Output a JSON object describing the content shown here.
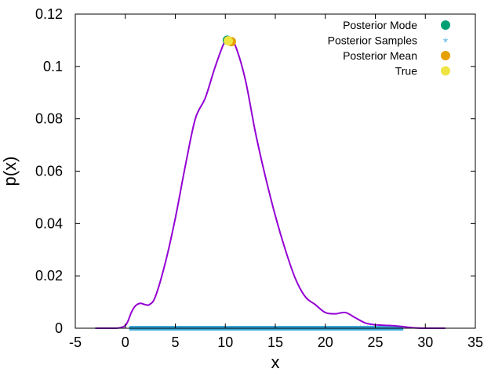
{
  "chart_data": {
    "type": "line",
    "title": "",
    "xlabel": "x",
    "ylabel": "p(x)",
    "xlim": [
      -5,
      35
    ],
    "ylim": [
      0,
      0.12
    ],
    "x_ticks": [
      -5,
      0,
      5,
      10,
      15,
      20,
      25,
      30,
      35
    ],
    "y_ticks": [
      0,
      0.02,
      0.04,
      0.06,
      0.08,
      0.1,
      0.12
    ],
    "x_tick_labels": [
      "-5",
      "0",
      "5",
      "10",
      "15",
      "20",
      "25",
      "30",
      "35"
    ],
    "y_tick_labels": [
      "0",
      "0.02",
      "0.04",
      "0.06",
      "0.08",
      "0.1",
      "0.12"
    ],
    "grid": false,
    "legend_position": "top-right",
    "curve": {
      "color": "#9400d3",
      "points": [
        [
          -3.0,
          0.0
        ],
        [
          -1.0,
          0.0
        ],
        [
          -0.5,
          0.0002
        ],
        [
          0.0,
          0.001
        ],
        [
          0.3,
          0.003
        ],
        [
          0.6,
          0.006
        ],
        [
          1.0,
          0.0085
        ],
        [
          1.5,
          0.0095
        ],
        [
          2.0,
          0.009
        ],
        [
          2.4,
          0.009
        ],
        [
          3.0,
          0.012
        ],
        [
          4.0,
          0.025
        ],
        [
          5.0,
          0.042
        ],
        [
          6.0,
          0.062
        ],
        [
          7.0,
          0.08
        ],
        [
          8.0,
          0.088
        ],
        [
          9.0,
          0.1
        ],
        [
          10.0,
          0.11
        ],
        [
          10.5,
          0.11
        ],
        [
          11.0,
          0.108
        ],
        [
          12.0,
          0.095
        ],
        [
          13.0,
          0.075
        ],
        [
          14.0,
          0.058
        ],
        [
          15.0,
          0.043
        ],
        [
          16.0,
          0.03
        ],
        [
          17.0,
          0.019
        ],
        [
          18.0,
          0.012
        ],
        [
          19.0,
          0.009
        ],
        [
          20.0,
          0.006
        ],
        [
          21.0,
          0.0055
        ],
        [
          22.0,
          0.006
        ],
        [
          23.0,
          0.004
        ],
        [
          24.0,
          0.002
        ],
        [
          25.0,
          0.0013
        ],
        [
          26.0,
          0.0011
        ],
        [
          27.0,
          0.0009
        ],
        [
          28.0,
          0.0005
        ],
        [
          29.0,
          0.0001
        ],
        [
          30.0,
          0.0
        ],
        [
          32.0,
          0.0
        ]
      ]
    },
    "samples": {
      "x_min": 0.4,
      "x_max": 27.8,
      "y": 0,
      "color": "#3aa8d8"
    },
    "markers": [
      {
        "name": "Posterior Mode",
        "x": 10.2,
        "y": 0.11,
        "color": "#009e73",
        "shape": "circle"
      },
      {
        "name": "Posterior Mean",
        "x": 10.6,
        "y": 0.1095,
        "color": "#e69f00",
        "shape": "circle"
      },
      {
        "name": "True",
        "x": 10.3,
        "y": 0.1098,
        "color": "#f0e442",
        "shape": "circle"
      }
    ],
    "legend": [
      {
        "label": "Posterior Mode",
        "color": "#009e73",
        "shape": "circle"
      },
      {
        "label": "Posterior Samples",
        "color": "#56b4e9",
        "shape": "star"
      },
      {
        "label": "Posterior Mean",
        "color": "#e69f00",
        "shape": "circle"
      },
      {
        "label": "True",
        "color": "#f0e442",
        "shape": "circle"
      }
    ]
  }
}
